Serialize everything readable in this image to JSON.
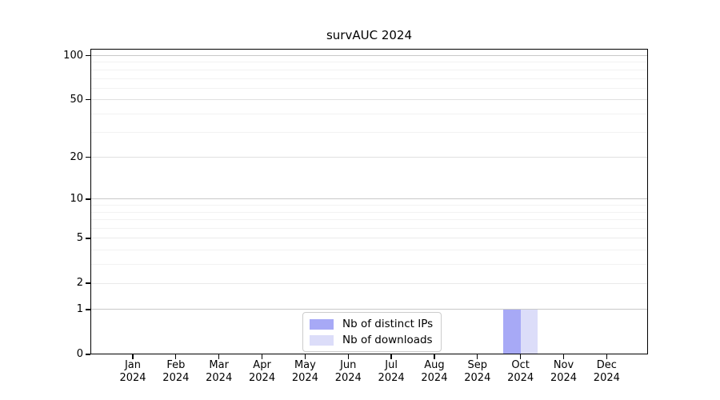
{
  "chart_data": {
    "type": "bar",
    "title": "survAUC 2024",
    "categories": [
      "Jan 2024",
      "Feb 2024",
      "Mar 2024",
      "Apr 2024",
      "May 2024",
      "Jun 2024",
      "Jul 2024",
      "Aug 2024",
      "Sep 2024",
      "Oct 2024",
      "Nov 2024",
      "Dec 2024"
    ],
    "series": [
      {
        "name": "Nb of distinct IPs",
        "color": "#a7a9f6",
        "values": [
          0,
          0,
          0,
          0,
          0,
          0,
          0,
          0,
          0,
          1,
          0,
          0
        ]
      },
      {
        "name": "Nb of downloads",
        "color": "#dcddf9",
        "values": [
          0,
          0,
          0,
          0,
          0,
          0,
          0,
          0,
          0,
          1,
          0,
          0
        ]
      }
    ],
    "xlabel": "",
    "ylabel": "",
    "yscale": "log1p",
    "ylim": [
      0,
      112
    ],
    "yticks": [
      0,
      1,
      2,
      5,
      10,
      20,
      50,
      100
    ],
    "yticks_minor": [
      3,
      4,
      6,
      7,
      8,
      9,
      30,
      40,
      60,
      70,
      80,
      90
    ],
    "grid": "horizontal",
    "legend_position": "inside-bottom-center"
  },
  "colors": {
    "background": "#ffffff",
    "spine": "#000000",
    "grid_decade": "#c9c9c9",
    "grid_mid": "#e0e0e0",
    "grid_light": "#eaeaea",
    "grid_minor": "#f2f2f2",
    "legend_border": "#cccccc",
    "text": "#000000"
  }
}
